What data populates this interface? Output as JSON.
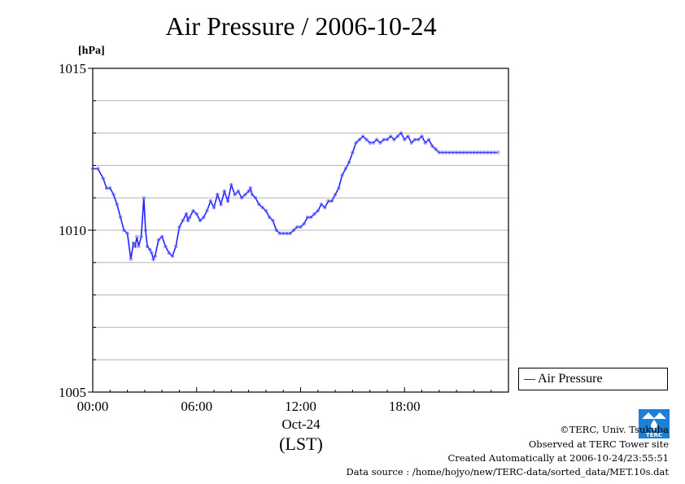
{
  "chart_data": {
    "type": "line",
    "title": "Air Pressure / 2006-10-24",
    "ylabel": "[hPa]",
    "ylim": [
      1005,
      1015
    ],
    "xlim_hours": [
      0,
      24
    ],
    "yticks": [
      "1005",
      "1010",
      "1015"
    ],
    "yticks_values": [
      1005,
      1010,
      1015
    ],
    "xticks": [
      "00:00",
      "06:00",
      "12:00",
      "18:00"
    ],
    "xticks_hours": [
      0,
      6,
      12,
      18
    ],
    "xlabel_date": "Oct-24",
    "xlabel_unit": "(LST)",
    "grid": true,
    "legend_position": "lower-right-outside",
    "series": [
      {
        "name": "Air Pressure",
        "color": "#2020ff",
        "hours": [
          0.0,
          0.3,
          0.6,
          0.8,
          1.0,
          1.2,
          1.4,
          1.6,
          1.8,
          2.0,
          2.2,
          2.35,
          2.45,
          2.55,
          2.65,
          2.8,
          2.95,
          3.05,
          3.15,
          3.3,
          3.4,
          3.5,
          3.6,
          3.8,
          4.0,
          4.2,
          4.4,
          4.6,
          4.8,
          5.0,
          5.2,
          5.4,
          5.5,
          5.6,
          5.8,
          6.0,
          6.2,
          6.4,
          6.6,
          6.8,
          7.0,
          7.2,
          7.4,
          7.6,
          7.8,
          8.0,
          8.2,
          8.4,
          8.6,
          8.8,
          9.0,
          9.1,
          9.2,
          9.4,
          9.6,
          9.8,
          10.0,
          10.2,
          10.4,
          10.6,
          10.8,
          11.0,
          11.2,
          11.4,
          11.6,
          11.8,
          12.0,
          12.2,
          12.4,
          12.6,
          12.8,
          13.0,
          13.2,
          13.4,
          13.6,
          13.8,
          14.0,
          14.2,
          14.4,
          14.6,
          14.8,
          15.0,
          15.2,
          15.4,
          15.6,
          15.8,
          16.0,
          16.2,
          16.4,
          16.6,
          16.8,
          17.0,
          17.2,
          17.4,
          17.6,
          17.8,
          18.0,
          18.2,
          18.4,
          18.6,
          18.8,
          19.0,
          19.2,
          19.4,
          19.6,
          19.8,
          20.0,
          20.2,
          20.4,
          20.6,
          20.8,
          21.0,
          21.2,
          21.4,
          21.6,
          21.8,
          22.0,
          22.2,
          22.4,
          22.6,
          22.8,
          23.0,
          23.2,
          23.4
        ],
        "values": [
          1011.9,
          1011.9,
          1011.6,
          1011.3,
          1011.3,
          1011.1,
          1010.8,
          1010.4,
          1010.0,
          1009.9,
          1009.1,
          1009.6,
          1009.5,
          1009.8,
          1009.5,
          1009.8,
          1011.0,
          1010.0,
          1009.5,
          1009.4,
          1009.3,
          1009.1,
          1009.2,
          1009.7,
          1009.8,
          1009.5,
          1009.3,
          1009.2,
          1009.5,
          1010.1,
          1010.3,
          1010.5,
          1010.3,
          1010.4,
          1010.6,
          1010.5,
          1010.3,
          1010.4,
          1010.6,
          1010.9,
          1010.7,
          1011.1,
          1010.8,
          1011.2,
          1010.9,
          1011.4,
          1011.1,
          1011.2,
          1011.0,
          1011.1,
          1011.2,
          1011.3,
          1011.1,
          1011.0,
          1010.8,
          1010.7,
          1010.6,
          1010.4,
          1010.3,
          1010.0,
          1009.9,
          1009.9,
          1009.9,
          1009.9,
          1010.0,
          1010.1,
          1010.1,
          1010.2,
          1010.4,
          1010.4,
          1010.5,
          1010.6,
          1010.8,
          1010.7,
          1010.9,
          1010.9,
          1011.1,
          1011.3,
          1011.7,
          1011.9,
          1012.1,
          1012.4,
          1012.7,
          1012.8,
          1012.9,
          1012.8,
          1012.7,
          1012.7,
          1012.8,
          1012.7,
          1012.8,
          1012.8,
          1012.9,
          1012.8,
          1012.9,
          1013.0,
          1012.8,
          1012.9,
          1012.7,
          1012.8,
          1012.8,
          1012.9,
          1012.7,
          1012.8,
          1012.6,
          1012.5,
          1012.4,
          1012.4,
          1012.4,
          1012.4,
          1012.4,
          1012.4,
          1012.4,
          1012.4,
          1012.4,
          1012.4,
          1012.4,
          1012.4,
          1012.4,
          1012.4,
          1012.4,
          1012.4,
          1012.4,
          1012.4
        ]
      }
    ]
  },
  "legend": {
    "label": "Air Pressure"
  },
  "credits": {
    "copyright": "©TERC, Univ. Tsukuba",
    "observed": "Observed at TERC Tower site",
    "created": "Created Automatically at 2006-10-24/23:55:51",
    "source": "Data source : /home/hojyo/new/TERC-data/sorted_data/MET.10s.dat"
  },
  "logo": {
    "text": "TERC",
    "color": "#1e7fd8"
  }
}
